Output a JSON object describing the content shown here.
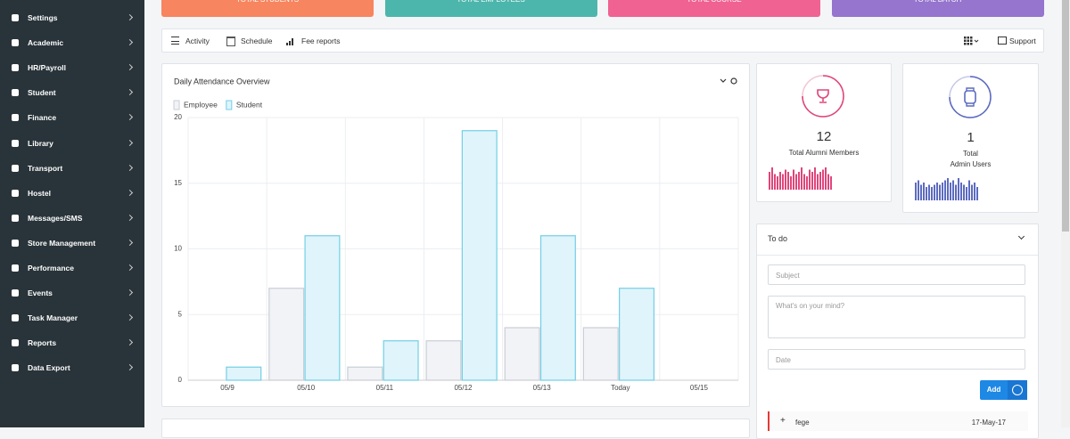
{
  "sidebar": {
    "items": [
      "Settings",
      "Academic",
      "HR/Payroll",
      "Student",
      "Finance",
      "Library",
      "Transport",
      "Hostel",
      "Messages/SMS",
      "Store Management",
      "Performance",
      "Events",
      "Task Manager",
      "Reports",
      "Data Export"
    ]
  },
  "stat_cards": [
    {
      "label": "TOTAL STUDENTS",
      "color": "#f7855f"
    },
    {
      "label": "TOTAL EMPLOYEES",
      "color": "#4db6ac"
    },
    {
      "label": "TOTAL COURSE",
      "color": "#f06292"
    },
    {
      "label": "TOTAL BATCH",
      "color": "#9575cd"
    }
  ],
  "tabs": {
    "items": [
      "Activity",
      "Schedule",
      "Fee reports"
    ],
    "support": "Support"
  },
  "chart_data": {
    "type": "bar",
    "title": "Daily Attendance Overview",
    "categories": [
      "05/9",
      "05/10",
      "05/11",
      "05/12",
      "05/13",
      "Today",
      "05/15"
    ],
    "series": [
      {
        "name": "Employee",
        "color": "#f2f3f6",
        "edge_color": "#c9ced6",
        "values": [
          0,
          7,
          1,
          3,
          4,
          4,
          0
        ]
      },
      {
        "name": "Student",
        "color": "#e0f4fb",
        "edge_color": "#72cfe6",
        "values": [
          1,
          11,
          3,
          19,
          11,
          7,
          0
        ]
      }
    ],
    "ylim": [
      0,
      20
    ],
    "yticks": [
      0,
      5,
      10,
      15,
      20
    ],
    "grid": true
  },
  "alumni": {
    "count": 12,
    "label": "Total Alumni Members",
    "color": "#e0457b",
    "sparkline": [
      8,
      10,
      7,
      6,
      8,
      7,
      9,
      8,
      6,
      9,
      7,
      8,
      10,
      7,
      6,
      9,
      8,
      10,
      7,
      8,
      9,
      10,
      7,
      6
    ]
  },
  "admin": {
    "count": 1,
    "label_line1": "Total",
    "label_line2": "Admin Users",
    "color": "#5c6bc0",
    "sparkline": [
      8,
      9,
      7,
      8,
      6,
      7,
      6,
      7,
      8,
      7,
      8,
      9,
      10,
      8,
      9,
      7,
      10,
      8,
      7,
      6,
      9,
      7,
      8,
      6
    ]
  },
  "todo": {
    "title": "To do",
    "subject_placeholder": "Subject",
    "mind_placeholder": "What's on your mind?",
    "date_placeholder": "Date",
    "add_button": "Add",
    "items": [
      {
        "text": "fege",
        "date": "17-May-17"
      }
    ]
  }
}
